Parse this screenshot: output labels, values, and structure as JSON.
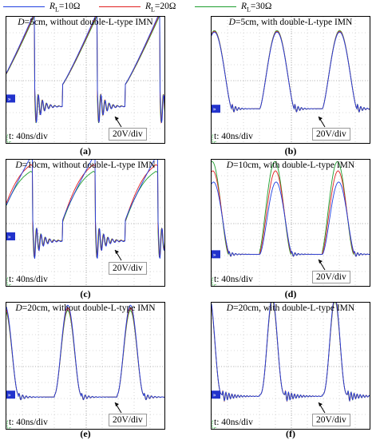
{
  "legend": {
    "items": [
      {
        "label": "R_L=10Ω",
        "main": "R",
        "sub": "L",
        "rest": "=10Ω",
        "color": "#1f3fe0"
      },
      {
        "label": "R_L=20Ω",
        "main": "R",
        "sub": "L",
        "rest": "=20Ω",
        "color": "#e02020"
      },
      {
        "label": "R_L=30Ω",
        "main": "R",
        "sub": "L",
        "rest": "=30Ω",
        "color": "#1e9e2e"
      }
    ]
  },
  "colors": {
    "grid": "#b8b8b8",
    "frame": "#000000",
    "marker": "#2233cc",
    "marker_green": "#1e9e2e"
  },
  "chart_data": [
    {
      "type": "line",
      "id": "a",
      "label": "(a)",
      "title_var": "D",
      "title_rest": "=5cm, without double-L-type IMN",
      "time_label": "t: 40ns/div",
      "scale_label": "20V/div",
      "waveform": "ramp_ring",
      "amplitude": [
        1.0,
        0.98,
        0.96
      ],
      "series": [
        {
          "name": "R_L=10Ω"
        },
        {
          "name": "R_L=20Ω"
        },
        {
          "name": "R_L=30Ω"
        }
      ]
    },
    {
      "type": "line",
      "id": "b",
      "label": "(b)",
      "title_var": "D",
      "title_rest": "=5cm, with double-L-type IMN",
      "time_label": "t: 40ns/div",
      "scale_label": "20V/div",
      "waveform": "pulse",
      "amplitude": [
        1.0,
        1.01,
        1.02
      ],
      "series": [
        {
          "name": "R_L=10Ω"
        },
        {
          "name": "R_L=20Ω"
        },
        {
          "name": "R_L=30Ω"
        }
      ]
    },
    {
      "type": "line",
      "id": "c",
      "label": "(c)",
      "title_var": "D",
      "title_rest": "=10cm, without double-L-type IMN",
      "time_label": "t: 40ns/div",
      "scale_label": "20V/div",
      "waveform": "ramp_ring_mid",
      "amplitude": [
        1.0,
        0.93,
        0.88
      ],
      "series": [
        {
          "name": "R_L=10Ω"
        },
        {
          "name": "R_L=20Ω"
        },
        {
          "name": "R_L=30Ω"
        }
      ]
    },
    {
      "type": "line",
      "id": "d",
      "label": "(d)",
      "title_var": "D",
      "title_rest": "=10cm, with double-L-type IMN",
      "time_label": "t: 40ns/div",
      "scale_label": "20V/div",
      "waveform": "pulse_tall",
      "amplitude": [
        0.78,
        0.9,
        1.0
      ],
      "series": [
        {
          "name": "R_L=10Ω"
        },
        {
          "name": "R_L=20Ω"
        },
        {
          "name": "R_L=30Ω"
        }
      ]
    },
    {
      "type": "line",
      "id": "e",
      "label": "(e)",
      "title_var": "D",
      "title_rest": "=20cm, without double-L-type IMN",
      "time_label": "t: 40ns/div",
      "scale_label": "20V/div",
      "waveform": "pulse_narrow",
      "amplitude": [
        1.0,
        0.97,
        0.94
      ],
      "series": [
        {
          "name": "R_L=10Ω"
        },
        {
          "name": "R_L=20Ω"
        },
        {
          "name": "R_L=30Ω"
        }
      ]
    },
    {
      "type": "line",
      "id": "f",
      "label": "(f)",
      "title_var": "D",
      "title_rest": "=20cm, with double-L-type IMN",
      "time_label": "t: 40ns/div",
      "scale_label": "20V/div",
      "waveform": "pulse_spike",
      "amplitude": [
        1.0,
        0.98,
        0.96
      ],
      "series": [
        {
          "name": "R_L=10Ω"
        },
        {
          "name": "R_L=20Ω"
        },
        {
          "name": "R_L=30Ω"
        }
      ]
    }
  ]
}
